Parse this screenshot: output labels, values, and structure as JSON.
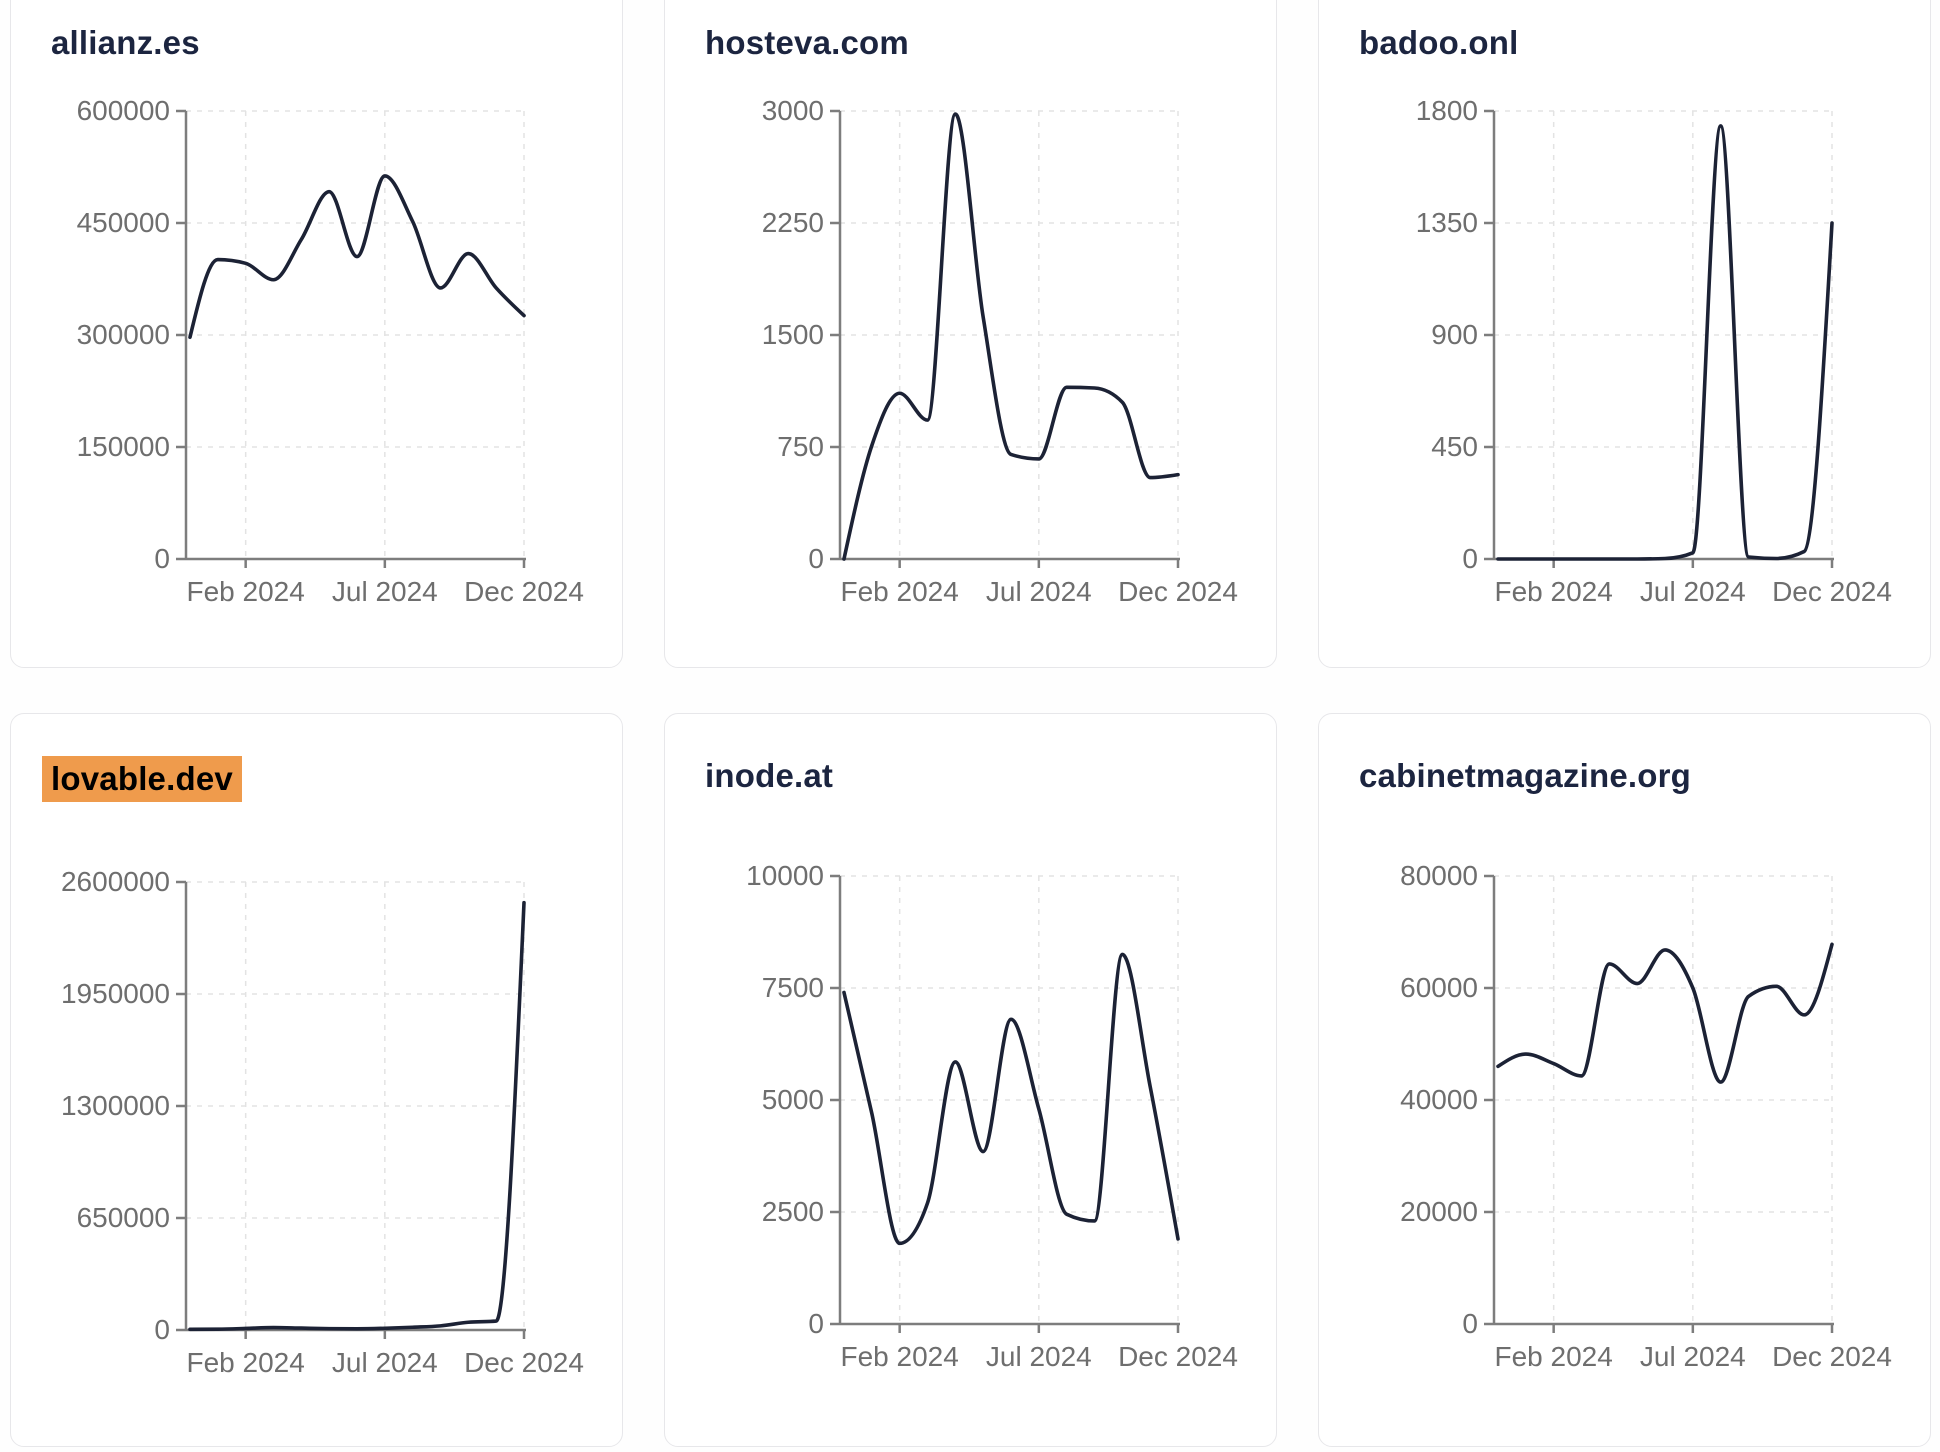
{
  "page": {
    "background": "#fefefe"
  },
  "style": {
    "line_color": "#1c2235",
    "title_color": "#1c2540",
    "tick_label_color": "#6e6e6e",
    "axis_color": "#7d7d7d",
    "grid_color": "#e3e3e3",
    "card_border_color": "#e7e7ea",
    "card_background": "#ffffff",
    "highlight_background": "#ef9b4c",
    "highlight_text_color": "#000000"
  },
  "chart_data": [
    {
      "type": "line",
      "title": "allianz.es",
      "highlighted": false,
      "x": [
        "Dec 2023",
        "Jan 2024",
        "Feb 2024",
        "Mar 2024",
        "Apr 2024",
        "May 2024",
        "Jun 2024",
        "Jul 2024",
        "Aug 2024",
        "Sep 2024",
        "Oct 2024",
        "Nov 2024",
        "Dec 2024"
      ],
      "values": [
        297000,
        401000,
        396000,
        374000,
        428000,
        492000,
        405000,
        513000,
        452000,
        363000,
        409000,
        363000,
        326000
      ],
      "ylim": [
        0,
        600000
      ],
      "y_ticks": [
        "0",
        "150000",
        "300000",
        "450000",
        "600000"
      ],
      "x_tick_labels": [
        "Feb 2024",
        "Jul 2024",
        "Dec 2024"
      ],
      "x_tick_indices": [
        2,
        7,
        12
      ],
      "grid": true,
      "legend": "none"
    },
    {
      "type": "line",
      "title": "hosteva.com",
      "highlighted": false,
      "x": [
        "Dec 2023",
        "Jan 2024",
        "Feb 2024",
        "Mar 2024",
        "Apr 2024",
        "May 2024",
        "Jun 2024",
        "Jul 2024",
        "Aug 2024",
        "Sep 2024",
        "Oct 2024",
        "Nov 2024",
        "Dec 2024"
      ],
      "values": [
        0,
        760,
        1110,
        930,
        2980,
        1620,
        700,
        670,
        1150,
        1145,
        1050,
        545,
        565
      ],
      "ylim": [
        0,
        3000
      ],
      "y_ticks": [
        "0",
        "750",
        "1500",
        "2250",
        "3000"
      ],
      "x_tick_labels": [
        "Feb 2024",
        "Jul 2024",
        "Dec 2024"
      ],
      "x_tick_indices": [
        2,
        7,
        12
      ],
      "grid": true,
      "legend": "none"
    },
    {
      "type": "line",
      "title": "badoo.onl",
      "highlighted": false,
      "x": [
        "Dec 2023",
        "Jan 2024",
        "Feb 2024",
        "Mar 2024",
        "Apr 2024",
        "May 2024",
        "Jun 2024",
        "Jul 2024",
        "Aug 2024",
        "Sep 2024",
        "Oct 2024",
        "Nov 2024",
        "Dec 2024"
      ],
      "values": [
        0,
        0,
        0,
        0,
        0,
        0,
        2,
        25,
        1740,
        8,
        2,
        30,
        1350
      ],
      "ylim": [
        0,
        1800
      ],
      "y_ticks": [
        "0",
        "450",
        "900",
        "1350",
        "1800"
      ],
      "x_tick_labels": [
        "Feb 2024",
        "Jul 2024",
        "Dec 2024"
      ],
      "x_tick_indices": [
        2,
        7,
        12
      ],
      "grid": true,
      "legend": "none"
    },
    {
      "type": "line",
      "title": "lovable.dev",
      "highlighted": true,
      "x": [
        "Dec 2023",
        "Jan 2024",
        "Feb 2024",
        "Mar 2024",
        "Apr 2024",
        "May 2024",
        "Jun 2024",
        "Jul 2024",
        "Aug 2024",
        "Sep 2024",
        "Oct 2024",
        "Nov 2024",
        "Dec 2024"
      ],
      "values": [
        4000,
        5000,
        9000,
        14000,
        11000,
        8000,
        7000,
        10000,
        16000,
        24000,
        45000,
        52000,
        2480000
      ],
      "ylim": [
        0,
        2600000
      ],
      "y_ticks": [
        "0",
        "650000",
        "1300000",
        "1950000",
        "2600000"
      ],
      "x_tick_labels": [
        "Feb 2024",
        "Jul 2024",
        "Dec 2024"
      ],
      "x_tick_indices": [
        2,
        7,
        12
      ],
      "grid": true,
      "legend": "none"
    },
    {
      "type": "line",
      "title": "inode.at",
      "highlighted": false,
      "x": [
        "Dec 2023",
        "Jan 2024",
        "Feb 2024",
        "Mar 2024",
        "Apr 2024",
        "May 2024",
        "Jun 2024",
        "Jul 2024",
        "Aug 2024",
        "Sep 2024",
        "Oct 2024",
        "Nov 2024",
        "Dec 2024"
      ],
      "values": [
        7400,
        4700,
        1800,
        2700,
        5850,
        3850,
        6800,
        4800,
        2450,
        2300,
        8250,
        5300,
        1900
      ],
      "ylim": [
        0,
        10000
      ],
      "y_ticks": [
        "0",
        "2500",
        "5000",
        "7500",
        "10000"
      ],
      "x_tick_labels": [
        "Feb 2024",
        "Jul 2024",
        "Dec 2024"
      ],
      "x_tick_indices": [
        2,
        7,
        12
      ],
      "grid": true,
      "legend": "none"
    },
    {
      "type": "line",
      "title": "cabinetmagazine.org",
      "highlighted": false,
      "x": [
        "Dec 2023",
        "Jan 2024",
        "Feb 2024",
        "Mar 2024",
        "Apr 2024",
        "May 2024",
        "Jun 2024",
        "Jul 2024",
        "Aug 2024",
        "Sep 2024",
        "Oct 2024",
        "Nov 2024",
        "Dec 2024"
      ],
      "values": [
        46000,
        48200,
        46500,
        44300,
        64300,
        60800,
        66800,
        60000,
        43200,
        58500,
        60300,
        55200,
        67800
      ],
      "ylim": [
        0,
        80000
      ],
      "y_ticks": [
        "0",
        "20000",
        "40000",
        "60000",
        "80000"
      ],
      "x_tick_labels": [
        "Feb 2024",
        "Jul 2024",
        "Dec 2024"
      ],
      "x_tick_indices": [
        2,
        7,
        12
      ],
      "grid": true,
      "legend": "none"
    }
  ]
}
